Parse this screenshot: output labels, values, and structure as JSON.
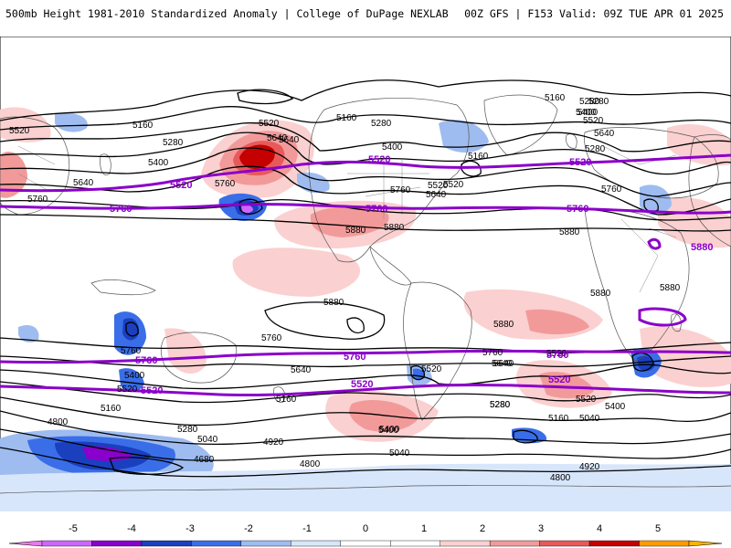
{
  "header": {
    "title_left": "500mb Height 1981-2010 Standardized Anomaly | College of DuPage NEXLAB",
    "title_right": "00Z GFS | F153 Valid: 09Z TUE APR 01 2025"
  },
  "map": {
    "projection": "cylindrical equidistant, global",
    "black_contour_labels": [
      {
        "id": "c1",
        "text": "5160"
      },
      {
        "id": "c2",
        "text": "5520"
      },
      {
        "id": "c3",
        "text": "5280"
      },
      {
        "id": "c4",
        "text": "5400"
      },
      {
        "id": "c5",
        "text": "5640"
      },
      {
        "id": "c6",
        "text": "5760"
      },
      {
        "id": "c7",
        "text": "5160"
      },
      {
        "id": "c8",
        "text": "5520"
      },
      {
        "id": "c9",
        "text": "5640"
      },
      {
        "id": "c10",
        "text": "5280"
      },
      {
        "id": "c11",
        "text": "5400"
      },
      {
        "id": "c12",
        "text": "5160"
      },
      {
        "id": "c13",
        "text": "5280"
      },
      {
        "id": "c14",
        "text": "5400"
      },
      {
        "id": "c15",
        "text": "5160"
      },
      {
        "id": "c16",
        "text": "5280"
      },
      {
        "id": "c17",
        "text": "5400"
      },
      {
        "id": "c18",
        "text": "5520"
      },
      {
        "id": "c19",
        "text": "5640"
      },
      {
        "id": "c20",
        "text": "5760"
      },
      {
        "id": "c21",
        "text": "5520"
      },
      {
        "id": "c22",
        "text": "5640"
      },
      {
        "id": "c23",
        "text": "5760"
      },
      {
        "id": "c24",
        "text": "5880"
      },
      {
        "id": "c25",
        "text": "5880"
      },
      {
        "id": "c26",
        "text": "5880"
      },
      {
        "id": "c27",
        "text": "5880"
      },
      {
        "id": "c28",
        "text": "5880"
      },
      {
        "id": "c29",
        "text": "5880"
      },
      {
        "id": "c30",
        "text": "5760"
      },
      {
        "id": "c31",
        "text": "5760"
      },
      {
        "id": "c32",
        "text": "5640"
      },
      {
        "id": "c33",
        "text": "5400"
      },
      {
        "id": "c34",
        "text": "5520"
      },
      {
        "id": "c35",
        "text": "5160"
      },
      {
        "id": "c36",
        "text": "5280"
      },
      {
        "id": "c37",
        "text": "5040"
      },
      {
        "id": "c38",
        "text": "4800"
      },
      {
        "id": "c39",
        "text": "4680"
      },
      {
        "id": "c40",
        "text": "5640"
      },
      {
        "id": "c41",
        "text": "5520"
      },
      {
        "id": "c42",
        "text": "5160"
      },
      {
        "id": "c43",
        "text": "5400"
      },
      {
        "id": "c44",
        "text": "5280"
      },
      {
        "id": "c45",
        "text": "4920"
      },
      {
        "id": "c46",
        "text": "5040"
      },
      {
        "id": "c47",
        "text": "4800"
      },
      {
        "id": "c48",
        "text": "5520"
      },
      {
        "id": "c49",
        "text": "5760"
      },
      {
        "id": "c50",
        "text": "5640"
      },
      {
        "id": "c51",
        "text": "5280"
      },
      {
        "id": "c52",
        "text": "5160"
      },
      {
        "id": "c53",
        "text": "5040"
      },
      {
        "id": "c54",
        "text": "4920"
      },
      {
        "id": "c55",
        "text": "4800"
      },
      {
        "id": "c56",
        "text": "5520"
      },
      {
        "id": "c57",
        "text": "5400"
      },
      {
        "id": "c58",
        "text": "5880"
      },
      {
        "id": "c59",
        "text": "5400"
      },
      {
        "id": "c60",
        "text": "5520"
      },
      {
        "id": "c61",
        "text": "5280"
      },
      {
        "id": "c62",
        "text": "5640"
      },
      {
        "id": "c63",
        "text": "5760"
      }
    ],
    "purple_contour_labels": [
      {
        "id": "p1",
        "text": "5520"
      },
      {
        "id": "p2",
        "text": "5520"
      },
      {
        "id": "p3",
        "text": "5520"
      },
      {
        "id": "p4",
        "text": "5760"
      },
      {
        "id": "p5",
        "text": "5760"
      },
      {
        "id": "p6",
        "text": "5760"
      },
      {
        "id": "p7",
        "text": "5760"
      },
      {
        "id": "p8",
        "text": "5760"
      },
      {
        "id": "p9",
        "text": "5760"
      },
      {
        "id": "p10",
        "text": "5520"
      },
      {
        "id": "p11",
        "text": "5520"
      },
      {
        "id": "p12",
        "text": "5520"
      },
      {
        "id": "p13",
        "text": "5880"
      }
    ]
  },
  "colorbar": {
    "ticks": [
      "-5",
      "-4",
      "-3",
      "-2",
      "-1",
      "0",
      "1",
      "2",
      "3",
      "4",
      "5"
    ],
    "colors": [
      "#cc66ff",
      "#8a00cc",
      "#1a3fbf",
      "#3a6ee8",
      "#9ebcf0",
      "#d8e6fb",
      "#ffffff",
      "#ffffff",
      "#fbd0d0",
      "#f29a9a",
      "#e85a5a",
      "#c40000",
      "#ff9a00"
    ],
    "under_color": "#e97ae9",
    "over_color": "#f7b500"
  }
}
